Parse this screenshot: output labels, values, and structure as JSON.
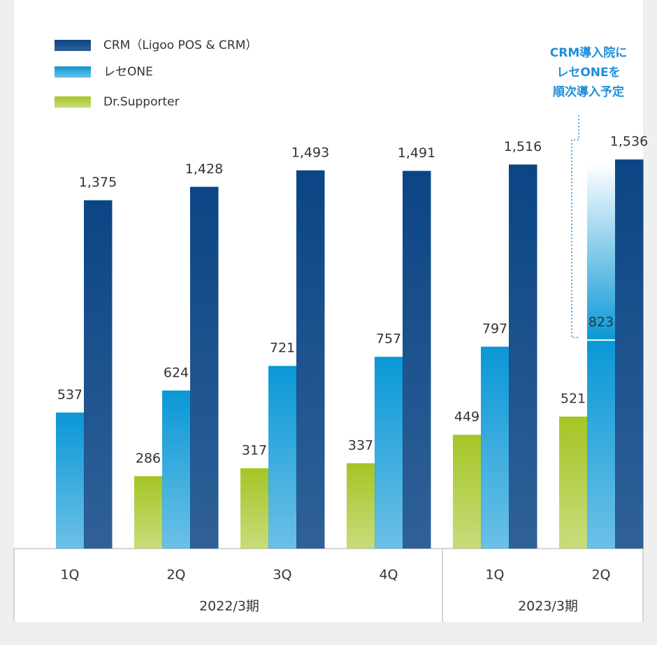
{
  "chart_data": {
    "type": "bar",
    "categories": [
      "1Q",
      "2Q",
      "3Q",
      "4Q",
      "1Q",
      "2Q"
    ],
    "period_labels": [
      "2022/3期",
      "2023/3期"
    ],
    "series": [
      {
        "name": "CRM（Ligoo POS & CRM）",
        "color": "#0b4585",
        "values": [
          1375,
          1428,
          1493,
          1491,
          1516,
          1536
        ],
        "value_labels": [
          "1,375",
          "1,428",
          "1,493",
          "1,491",
          "1,516",
          "1,536"
        ]
      },
      {
        "name": "レセONE",
        "color": "#0a97d6",
        "values": [
          537,
          624,
          721,
          757,
          797,
          823
        ]
      },
      {
        "name": "Dr.Supporter",
        "color": "#a4c525",
        "values": [
          null,
          286,
          317,
          337,
          449,
          521
        ]
      }
    ],
    "annotation": [
      "CRM導入院に",
      "レセONEを",
      "順次導入予定"
    ],
    "ylim": [
      0,
      2000
    ]
  }
}
